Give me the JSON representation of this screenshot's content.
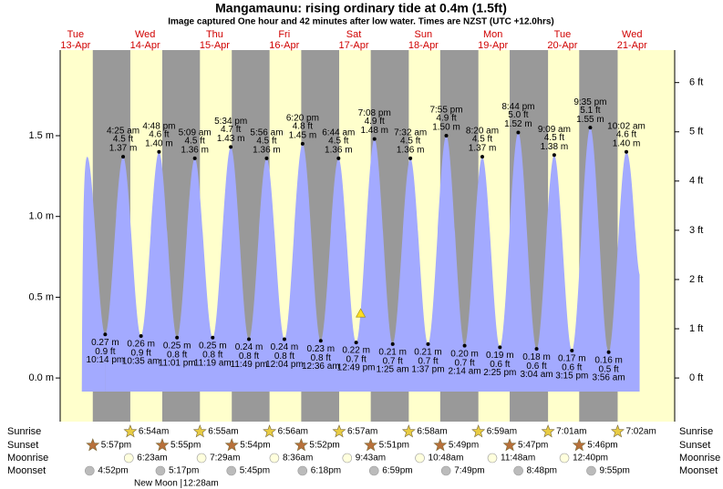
{
  "chart_data": {
    "type": "tide",
    "title": "Mangamaunu: rising  ordinary tide at 0.4m (1.5ft)",
    "subtitle": "Image captured One hour and 42 minutes after low water. Times are NZST (UTC +12.0hrs)",
    "current": 0.4,
    "days": {
      "weekdays": [
        "Tue",
        "Wed",
        "Thu",
        "Fri",
        "Sat",
        "Sun",
        "Mon",
        "Tue",
        "Wed"
      ],
      "dates": [
        "13-Apr",
        "14-Apr",
        "15-Apr",
        "16-Apr",
        "17-Apr",
        "18-Apr",
        "19-Apr",
        "20-Apr",
        "21-Apr"
      ]
    },
    "extremes": {
      "x": [
        "10:14 pm",
        "4:25 am",
        "10:35 am",
        "4:48 pm",
        "11:01 pm",
        "5:09 am",
        "11:19 am",
        "5:34 pm",
        "11:49 pm",
        "5:56 am",
        "12:04 pm",
        "6:20 pm",
        "12:36 am",
        "6:44 am",
        "12:49 pm",
        "7:08 pm",
        "1:25 am",
        "7:32 am",
        "1:37 pm",
        "7:55 pm",
        "2:14 am",
        "8:20 am",
        "2:25 pm",
        "8:44 pm",
        "3:04 am",
        "9:09 am",
        "3:15 pm",
        "9:35 pm",
        "3:56 am",
        "10:02 am"
      ],
      "values": [
        0.27,
        1.37,
        0.26,
        1.4,
        0.25,
        1.36,
        0.25,
        1.43,
        0.24,
        1.36,
        0.24,
        1.45,
        0.23,
        1.36,
        0.22,
        1.48,
        0.21,
        1.36,
        0.21,
        1.5,
        0.2,
        1.37,
        0.19,
        1.52,
        0.18,
        1.38,
        0.17,
        1.55,
        0.16,
        1.4
      ],
      "value_labels": [
        "0.27 m",
        "1.37 m",
        "0.26 m",
        "1.40 m",
        "0.25 m",
        "1.36 m",
        "0.25 m",
        "1.43 m",
        "0.24 m",
        "1.36 m",
        "0.24 m",
        "1.45 m",
        "0.23 m",
        "1.36 m",
        "0.22 m",
        "1.48 m",
        "0.21 m",
        "1.36 m",
        "0.21 m",
        "1.50 m",
        "0.20 m",
        "1.37 m",
        "0.19 m",
        "1.52 m",
        "0.18 m",
        "1.38 m",
        "0.17 m",
        "1.55 m",
        "0.16 m",
        "1.40 m"
      ],
      "value_labels_ft": [
        "0.9 ft",
        "4.5 ft",
        "0.9 ft",
        "4.6 ft",
        "0.8 ft",
        "4.5 ft",
        "0.8 ft",
        "4.7 ft",
        "0.8 ft",
        "4.5 ft",
        "0.8 ft",
        "4.8 ft",
        "0.8 ft",
        "4.5 ft",
        "0.7 ft",
        "4.9 ft",
        "0.7 ft",
        "4.5 ft",
        "0.7 ft",
        "4.9 ft",
        "0.7 ft",
        "4.5 ft",
        "0.6 ft",
        "5.0 ft",
        "0.6 ft",
        "4.5 ft",
        "0.6 ft",
        "5.1 ft",
        "0.5 ft",
        "4.6 ft"
      ]
    },
    "ylim": [
      -0.27,
      2.03
    ],
    "yticks": [
      {
        "value": 0,
        "label": "0.0 m"
      },
      {
        "value": 0.5,
        "label": "0.5 m"
      },
      {
        "value": 1,
        "label": "1.0 m"
      },
      {
        "value": 1.5,
        "label": "1.5 m"
      }
    ],
    "y2lim": [
      -0.886,
      6.66
    ],
    "y2ticks": [
      {
        "value": 0,
        "label": "0 ft"
      },
      {
        "value": 1,
        "label": "1 ft"
      },
      {
        "value": 2,
        "label": "2 ft"
      },
      {
        "value": 3,
        "label": "3 ft"
      },
      {
        "value": 4,
        "label": "4 ft"
      },
      {
        "value": 5,
        "label": "5 ft"
      },
      {
        "value": 6,
        "label": "6 ft"
      }
    ],
    "grid": false,
    "color": "#a3aaff",
    "day_color": "#ffffcc",
    "night_color": "#999999",
    "sun_moon": {
      "sunrise": {
        "label": "Sunrise",
        "times": [
          "6:54am",
          "6:55am",
          "6:56am",
          "6:57am",
          "6:58am",
          "6:59am",
          "7:01am",
          "7:02am"
        ]
      },
      "sunset": {
        "label": "Sunset",
        "times": [
          "5:57pm",
          "5:55pm",
          "5:54pm",
          "5:52pm",
          "5:51pm",
          "5:49pm",
          "5:47pm",
          "5:46pm"
        ]
      },
      "moonrise": {
        "label": "Moonrise",
        "times": [
          "6:23am",
          "7:29am",
          "8:36am",
          "9:43am",
          "10:48am",
          "11:48am",
          "12:40pm"
        ]
      },
      "moonset": {
        "label": "Moonset",
        "times": [
          "4:52pm",
          "5:17pm",
          "5:45pm",
          "6:18pm",
          "6:59pm",
          "7:49pm",
          "8:48pm",
          "9:55pm"
        ]
      },
      "moon_phase": {
        "name": "New Moon",
        "time": "12:28am"
      }
    }
  }
}
